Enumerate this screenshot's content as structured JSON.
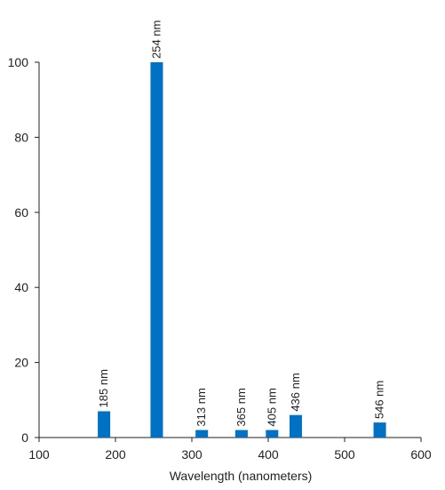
{
  "chart_data": {
    "type": "bar",
    "title": "",
    "xlabel": "Wavelength (nanometers)",
    "ylabel": "",
    "xlim": [
      100,
      600
    ],
    "ylim": [
      0,
      100
    ],
    "xticks": [
      100,
      200,
      300,
      400,
      500,
      600
    ],
    "yticks": [
      0,
      20,
      40,
      60,
      80,
      100
    ],
    "grid": false,
    "color": "#0071c5",
    "bars": [
      {
        "x": 185,
        "value": 7,
        "label": "185 nm"
      },
      {
        "x": 254,
        "value": 100,
        "label": "254 nm"
      },
      {
        "x": 313,
        "value": 2,
        "label": "313 nm"
      },
      {
        "x": 365,
        "value": 2,
        "label": "365 nm"
      },
      {
        "x": 405,
        "value": 2,
        "label": "405 nm"
      },
      {
        "x": 436,
        "value": 6,
        "label": "436 nm"
      },
      {
        "x": 546,
        "value": 4,
        "label": "546 nm"
      }
    ]
  }
}
